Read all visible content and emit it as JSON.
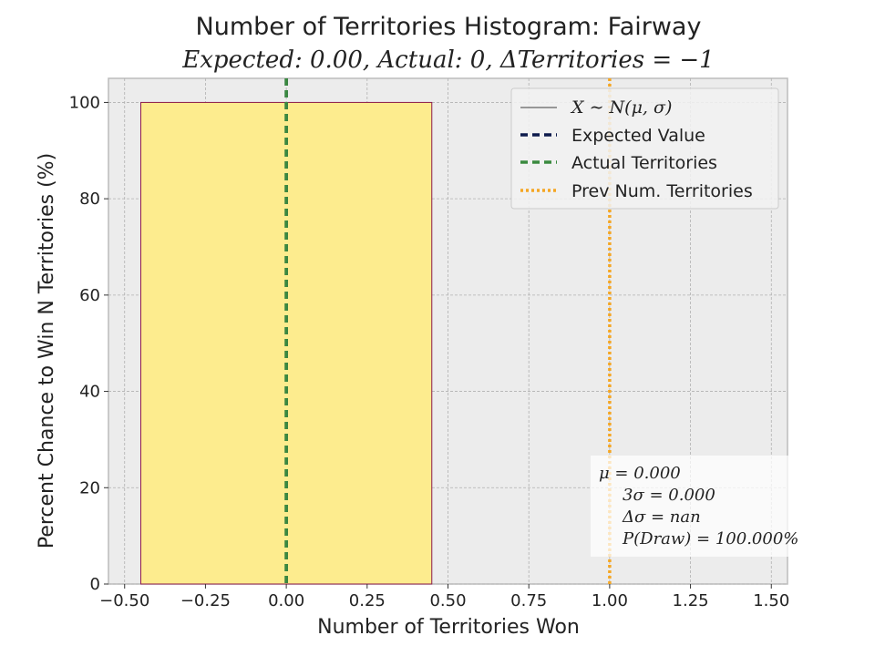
{
  "chart_data": {
    "type": "bar",
    "title": "Number of Territories Histogram: Fairway",
    "subtitle": "Expected: 0.00, Actual: 0, ΔTerritories = −1",
    "xlabel": "Number of Territories Won",
    "ylabel": "Percent Chance to Win N Territories (%)",
    "xlim": [
      -0.55,
      1.55
    ],
    "ylim": [
      0,
      105
    ],
    "xticks": [
      -0.5,
      -0.25,
      0.0,
      0.25,
      0.5,
      0.75,
      1.0,
      1.25,
      1.5
    ],
    "xtick_labels": [
      "−0.50",
      "−0.25",
      "0.00",
      "0.25",
      "0.50",
      "0.75",
      "1.00",
      "1.25",
      "1.50"
    ],
    "yticks": [
      0,
      20,
      40,
      60,
      80,
      100
    ],
    "ytick_labels": [
      "0",
      "20",
      "40",
      "60",
      "80",
      "100"
    ],
    "grid": true,
    "bars": [
      {
        "x": 0,
        "width": 0.9,
        "value": 100,
        "color": "#fdec8e",
        "edge_color": "#8b1a4a"
      }
    ],
    "vlines": [
      {
        "name": "Expected Value",
        "x": 0,
        "color": "#0d1b4c",
        "style": "dashed"
      },
      {
        "name": "Actual Territories",
        "x": 0,
        "color": "#3a8a3f",
        "style": "dashed"
      },
      {
        "name": "Prev Num. Territories",
        "x": 1,
        "color": "#f5a623",
        "style": "dotted"
      }
    ],
    "legend": {
      "placement": "top-right",
      "entries": [
        {
          "label": "X ∼ N(μ, σ)",
          "color": "#000000",
          "style": "thin-solid"
        },
        {
          "label": "Expected Value",
          "color": "#0d1b4c",
          "style": "dashed"
        },
        {
          "label": "Actual Territories",
          "color": "#3a8a3f",
          "style": "dashed"
        },
        {
          "label": "Prev Num. Territories",
          "color": "#f5a623",
          "style": "dotted"
        }
      ]
    },
    "stats_box": {
      "placement": "lower-right",
      "lines": [
        "μ = 0.000",
        "3σ = 0.000",
        "Δσ = nan",
        "P(Draw) = 100.000%"
      ]
    }
  },
  "colors": {
    "plot_background": "#ececec",
    "grid": "#b0b0b0",
    "axis": "#bcbcbc"
  }
}
